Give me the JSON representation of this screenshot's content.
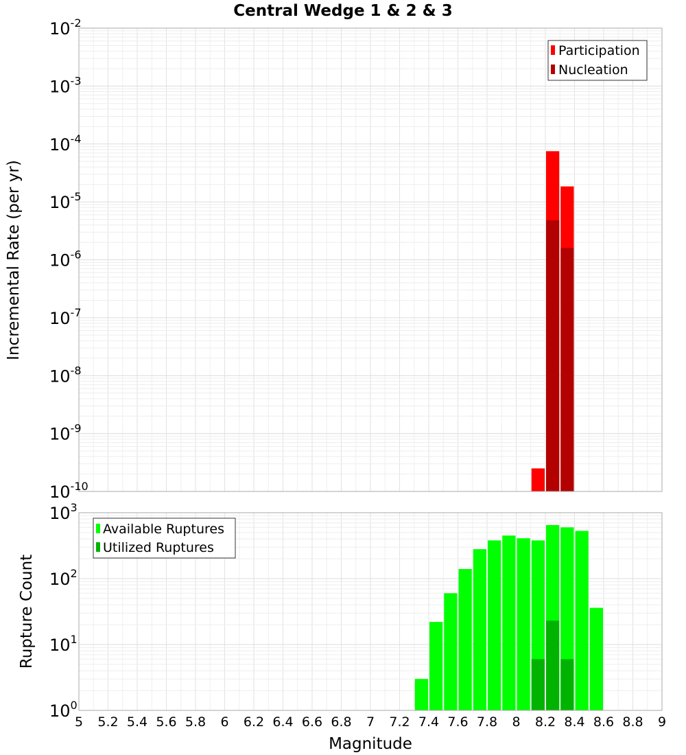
{
  "chart_data": [
    {
      "type": "bar",
      "panel": "top",
      "title": "Central Wedge 1 & 2 & 3",
      "ylabel": "Incremental Rate (per yr)",
      "xlabel": "",
      "yscale": "log",
      "ylim_exp": [
        -10,
        -2
      ],
      "ytick_exponents": [
        "-10",
        "-9",
        "-8",
        "-7",
        "-6",
        "-5",
        "-4",
        "-3",
        "-2"
      ],
      "xlim": [
        5,
        9
      ],
      "bin_width": 0.1,
      "legend_position": "top-right",
      "series": [
        {
          "name": "Participation",
          "color": "#ff0000",
          "x": [
            8.15,
            8.25,
            8.35
          ],
          "values": [
            2.5e-10,
            7.5e-05,
            1.85e-05
          ]
        },
        {
          "name": "Nucleation",
          "color": "#b30000",
          "x": [
            8.25,
            8.35
          ],
          "values": [
            4.8e-06,
            1.6e-06
          ]
        }
      ]
    },
    {
      "type": "bar",
      "panel": "bottom",
      "title": "",
      "ylabel": "Rupture Count",
      "xlabel": "Magnitude",
      "yscale": "log",
      "ylim_exp": [
        0,
        3
      ],
      "ytick_exponents": [
        "0",
        "1",
        "2",
        "3"
      ],
      "xlim": [
        5,
        9
      ],
      "bin_width": 0.1,
      "xticks": [
        "5",
        "5.2",
        "5.4",
        "5.6",
        "5.8",
        "6",
        "6.2",
        "6.4",
        "6.6",
        "6.8",
        "7",
        "7.2",
        "7.4",
        "7.6",
        "7.8",
        "8",
        "8.2",
        "8.4",
        "8.6",
        "8.8",
        "9"
      ],
      "legend_position": "top-left",
      "series": [
        {
          "name": "Available Ruptures",
          "color": "#00ff00",
          "x": [
            7.35,
            7.45,
            7.55,
            7.65,
            7.75,
            7.85,
            7.95,
            8.05,
            8.15,
            8.25,
            8.35,
            8.45,
            8.55
          ],
          "values": [
            3,
            22,
            60,
            140,
            280,
            380,
            450,
            410,
            380,
            650,
            600,
            530,
            36
          ]
        },
        {
          "name": "Utilized Ruptures",
          "color": "#00b300",
          "x": [
            8.15,
            8.25,
            8.35
          ],
          "values": [
            6,
            23,
            6
          ]
        }
      ]
    }
  ]
}
